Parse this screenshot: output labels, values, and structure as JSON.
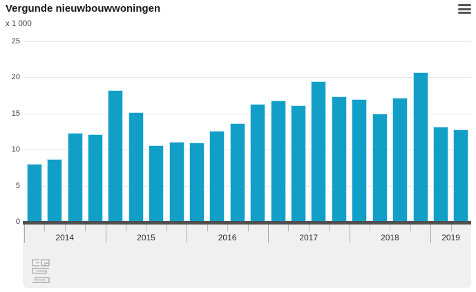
{
  "header": {
    "title": "Vergunde nieuwbouwwoningen",
    "unit_label": "x 1 000",
    "menu_icon": "hamburger-menu-icon"
  },
  "chart_data": {
    "type": "bar",
    "title": "Vergunde nieuwbouwwoningen",
    "ylabel": "x 1 000",
    "ylim": [
      0,
      25
    ],
    "yticks": [
      0,
      5,
      10,
      15,
      20,
      25
    ],
    "grid": "horizontal",
    "legend": "none",
    "bar_color": "#119fc8",
    "groups": [
      {
        "year": "2014",
        "values": [
          8.0,
          8.7,
          12.3,
          12.1
        ]
      },
      {
        "year": "2015",
        "values": [
          18.2,
          15.2,
          10.6,
          11.1
        ]
      },
      {
        "year": "2016",
        "values": [
          11.0,
          12.6,
          13.6,
          16.3
        ]
      },
      {
        "year": "2017",
        "values": [
          16.8,
          16.1,
          19.5,
          17.4
        ]
      },
      {
        "year": "2018",
        "values": [
          17.0,
          15.0,
          17.2,
          20.7
        ]
      },
      {
        "year": "2019",
        "values": [
          13.2,
          12.8
        ]
      }
    ]
  },
  "footer": {
    "logo": "cbs-logo"
  },
  "colors": {
    "bar": "#119fc8",
    "axis_line": "#4f4f50",
    "footer_bg": "#f0f0f0",
    "gridline": "#e8e8e8",
    "tick": "#a9a9a9",
    "logo": "#b0b0b0",
    "title_text": "#191919",
    "label_text": "#3d3d3d"
  }
}
